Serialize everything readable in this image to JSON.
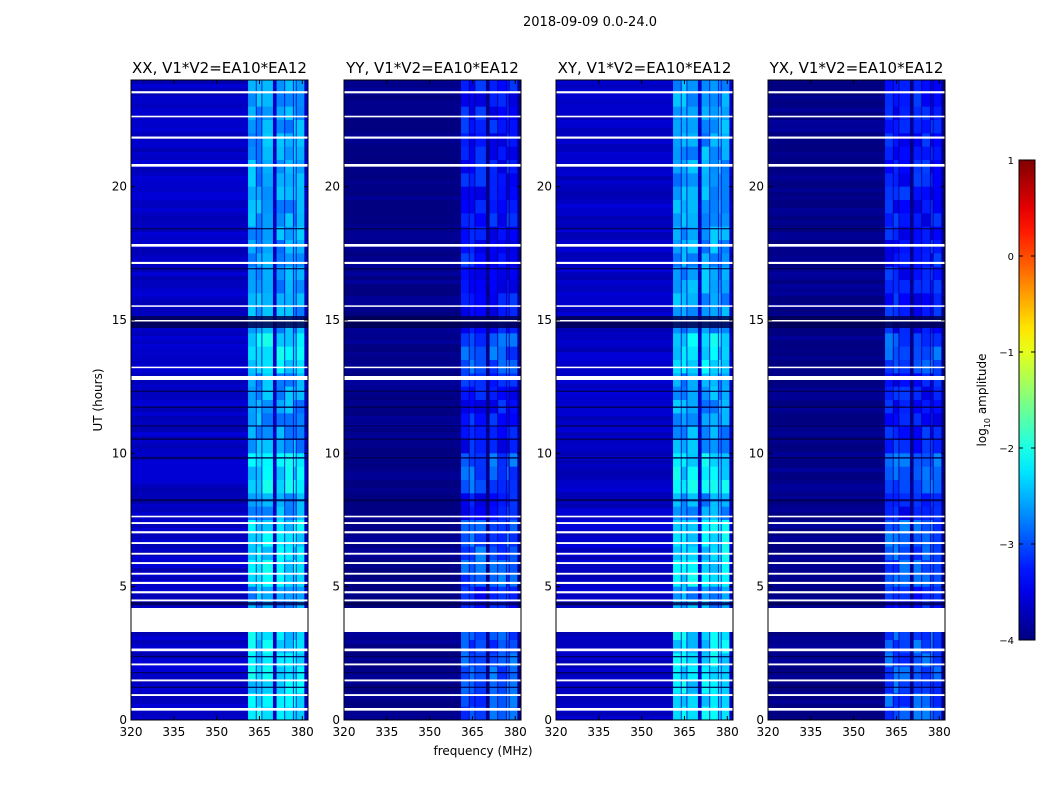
{
  "chart_data": {
    "type": "heatmap",
    "suptitle": "2018-09-09 0.0-24.0",
    "xlabel": "frequency (MHz)",
    "ylabel": "UT (hours)",
    "xlim": [
      320,
      382
    ],
    "ylim": [
      0,
      24
    ],
    "xticks": [
      320,
      335,
      350,
      365,
      380
    ],
    "yticks": [
      0,
      5,
      10,
      15,
      20
    ],
    "panels": [
      {
        "title": "XX, V1*V2=EA10*EA12",
        "pol": "XX",
        "bg_level": -3.7,
        "band_level": -2.6
      },
      {
        "title": "YY, V1*V2=EA10*EA12",
        "pol": "YY",
        "bg_level": -4.0,
        "band_level": -3.3
      },
      {
        "title": "XY, V1*V2=EA10*EA12",
        "pol": "XY",
        "bg_level": -3.7,
        "band_level": -2.6
      },
      {
        "title": "YX, V1*V2=EA10*EA12",
        "pol": "YX",
        "bg_level": -4.0,
        "band_level": -3.3
      }
    ],
    "band_segments_mhz": [
      [
        361,
        364
      ],
      [
        364,
        366
      ],
      [
        366,
        370
      ],
      [
        371,
        374
      ],
      [
        374,
        377
      ],
      [
        377,
        378
      ],
      [
        378,
        381
      ]
    ],
    "flagged_hours": [
      [
        0.35,
        0.45
      ],
      [
        0.9,
        0.97
      ],
      [
        1.45,
        1.52
      ],
      [
        2.05,
        2.12
      ],
      [
        2.58,
        2.68
      ],
      [
        3.3,
        4.2
      ],
      [
        4.45,
        4.52
      ],
      [
        4.75,
        4.83
      ],
      [
        5.1,
        5.18
      ],
      [
        5.45,
        5.52
      ],
      [
        5.85,
        5.92
      ],
      [
        6.2,
        6.27
      ],
      [
        6.6,
        6.67
      ],
      [
        7.0,
        7.08
      ],
      [
        7.35,
        7.42
      ],
      [
        7.6,
        7.66
      ],
      [
        12.75,
        12.9
      ],
      [
        13.2,
        13.25
      ],
      [
        14.95,
        15.0
      ],
      [
        15.5,
        15.55
      ],
      [
        17.1,
        17.18
      ],
      [
        17.75,
        17.85
      ],
      [
        20.75,
        20.85
      ],
      [
        21.8,
        21.88
      ],
      [
        22.6,
        22.66
      ],
      [
        23.5,
        23.58
      ]
    ],
    "dark_hours": [
      [
        1.2,
        1.25
      ],
      [
        1.75,
        1.8
      ],
      [
        2.35,
        2.4
      ],
      [
        4.3,
        4.42
      ],
      [
        8.2,
        8.28
      ],
      [
        9.8,
        9.86
      ],
      [
        10.5,
        10.56
      ],
      [
        11.0,
        11.05
      ],
      [
        11.7,
        11.76
      ],
      [
        12.3,
        12.35
      ],
      [
        14.7,
        15.15
      ],
      [
        16.9,
        16.95
      ],
      [
        18.4,
        18.45
      ]
    ],
    "colorbar": {
      "label": "log",
      "label_sub": "10",
      "label_tail": " amplitude",
      "range": [
        -4,
        1
      ],
      "ticks": [
        "1",
        "0",
        "−1",
        "−2",
        "−3",
        "−4"
      ],
      "colormap": "jet"
    }
  }
}
